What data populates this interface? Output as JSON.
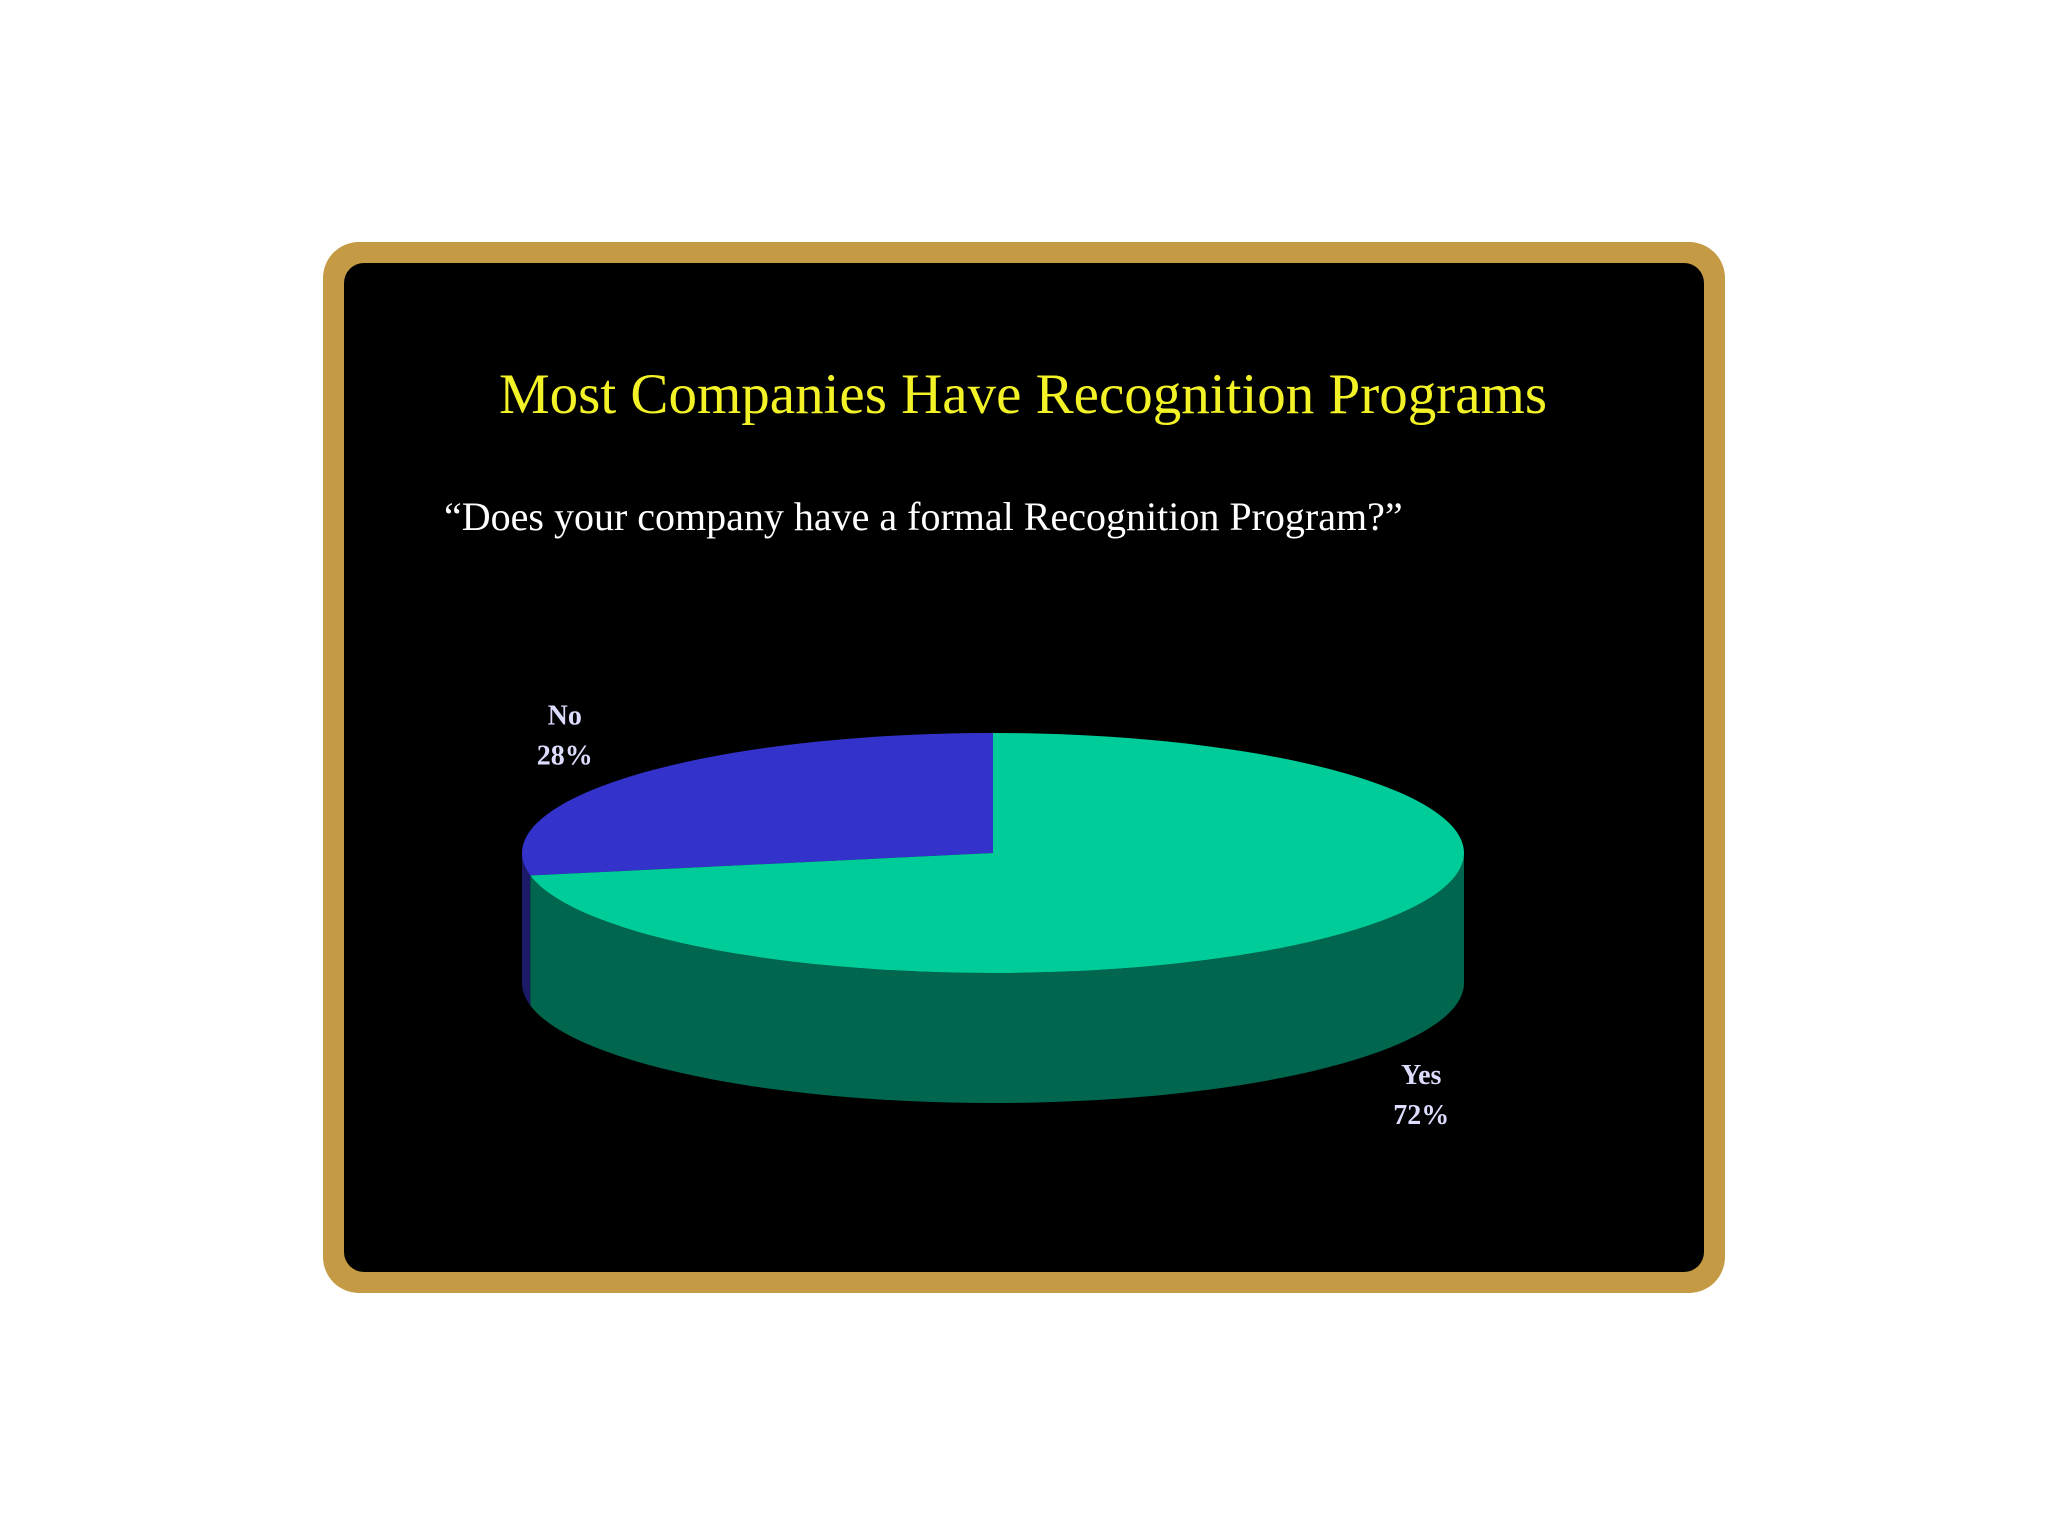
{
  "chart_data": {
    "type": "pie",
    "title": "Most Companies Have Recognition Programs",
    "subtitle": "“Does your company have a formal Recognition Program?”",
    "categories": [
      "No",
      "Yes"
    ],
    "values": [
      28,
      72
    ],
    "value_labels": [
      "28%",
      "72%"
    ],
    "colors": [
      "#3333cc",
      "#00cc99"
    ],
    "three_d": true
  }
}
